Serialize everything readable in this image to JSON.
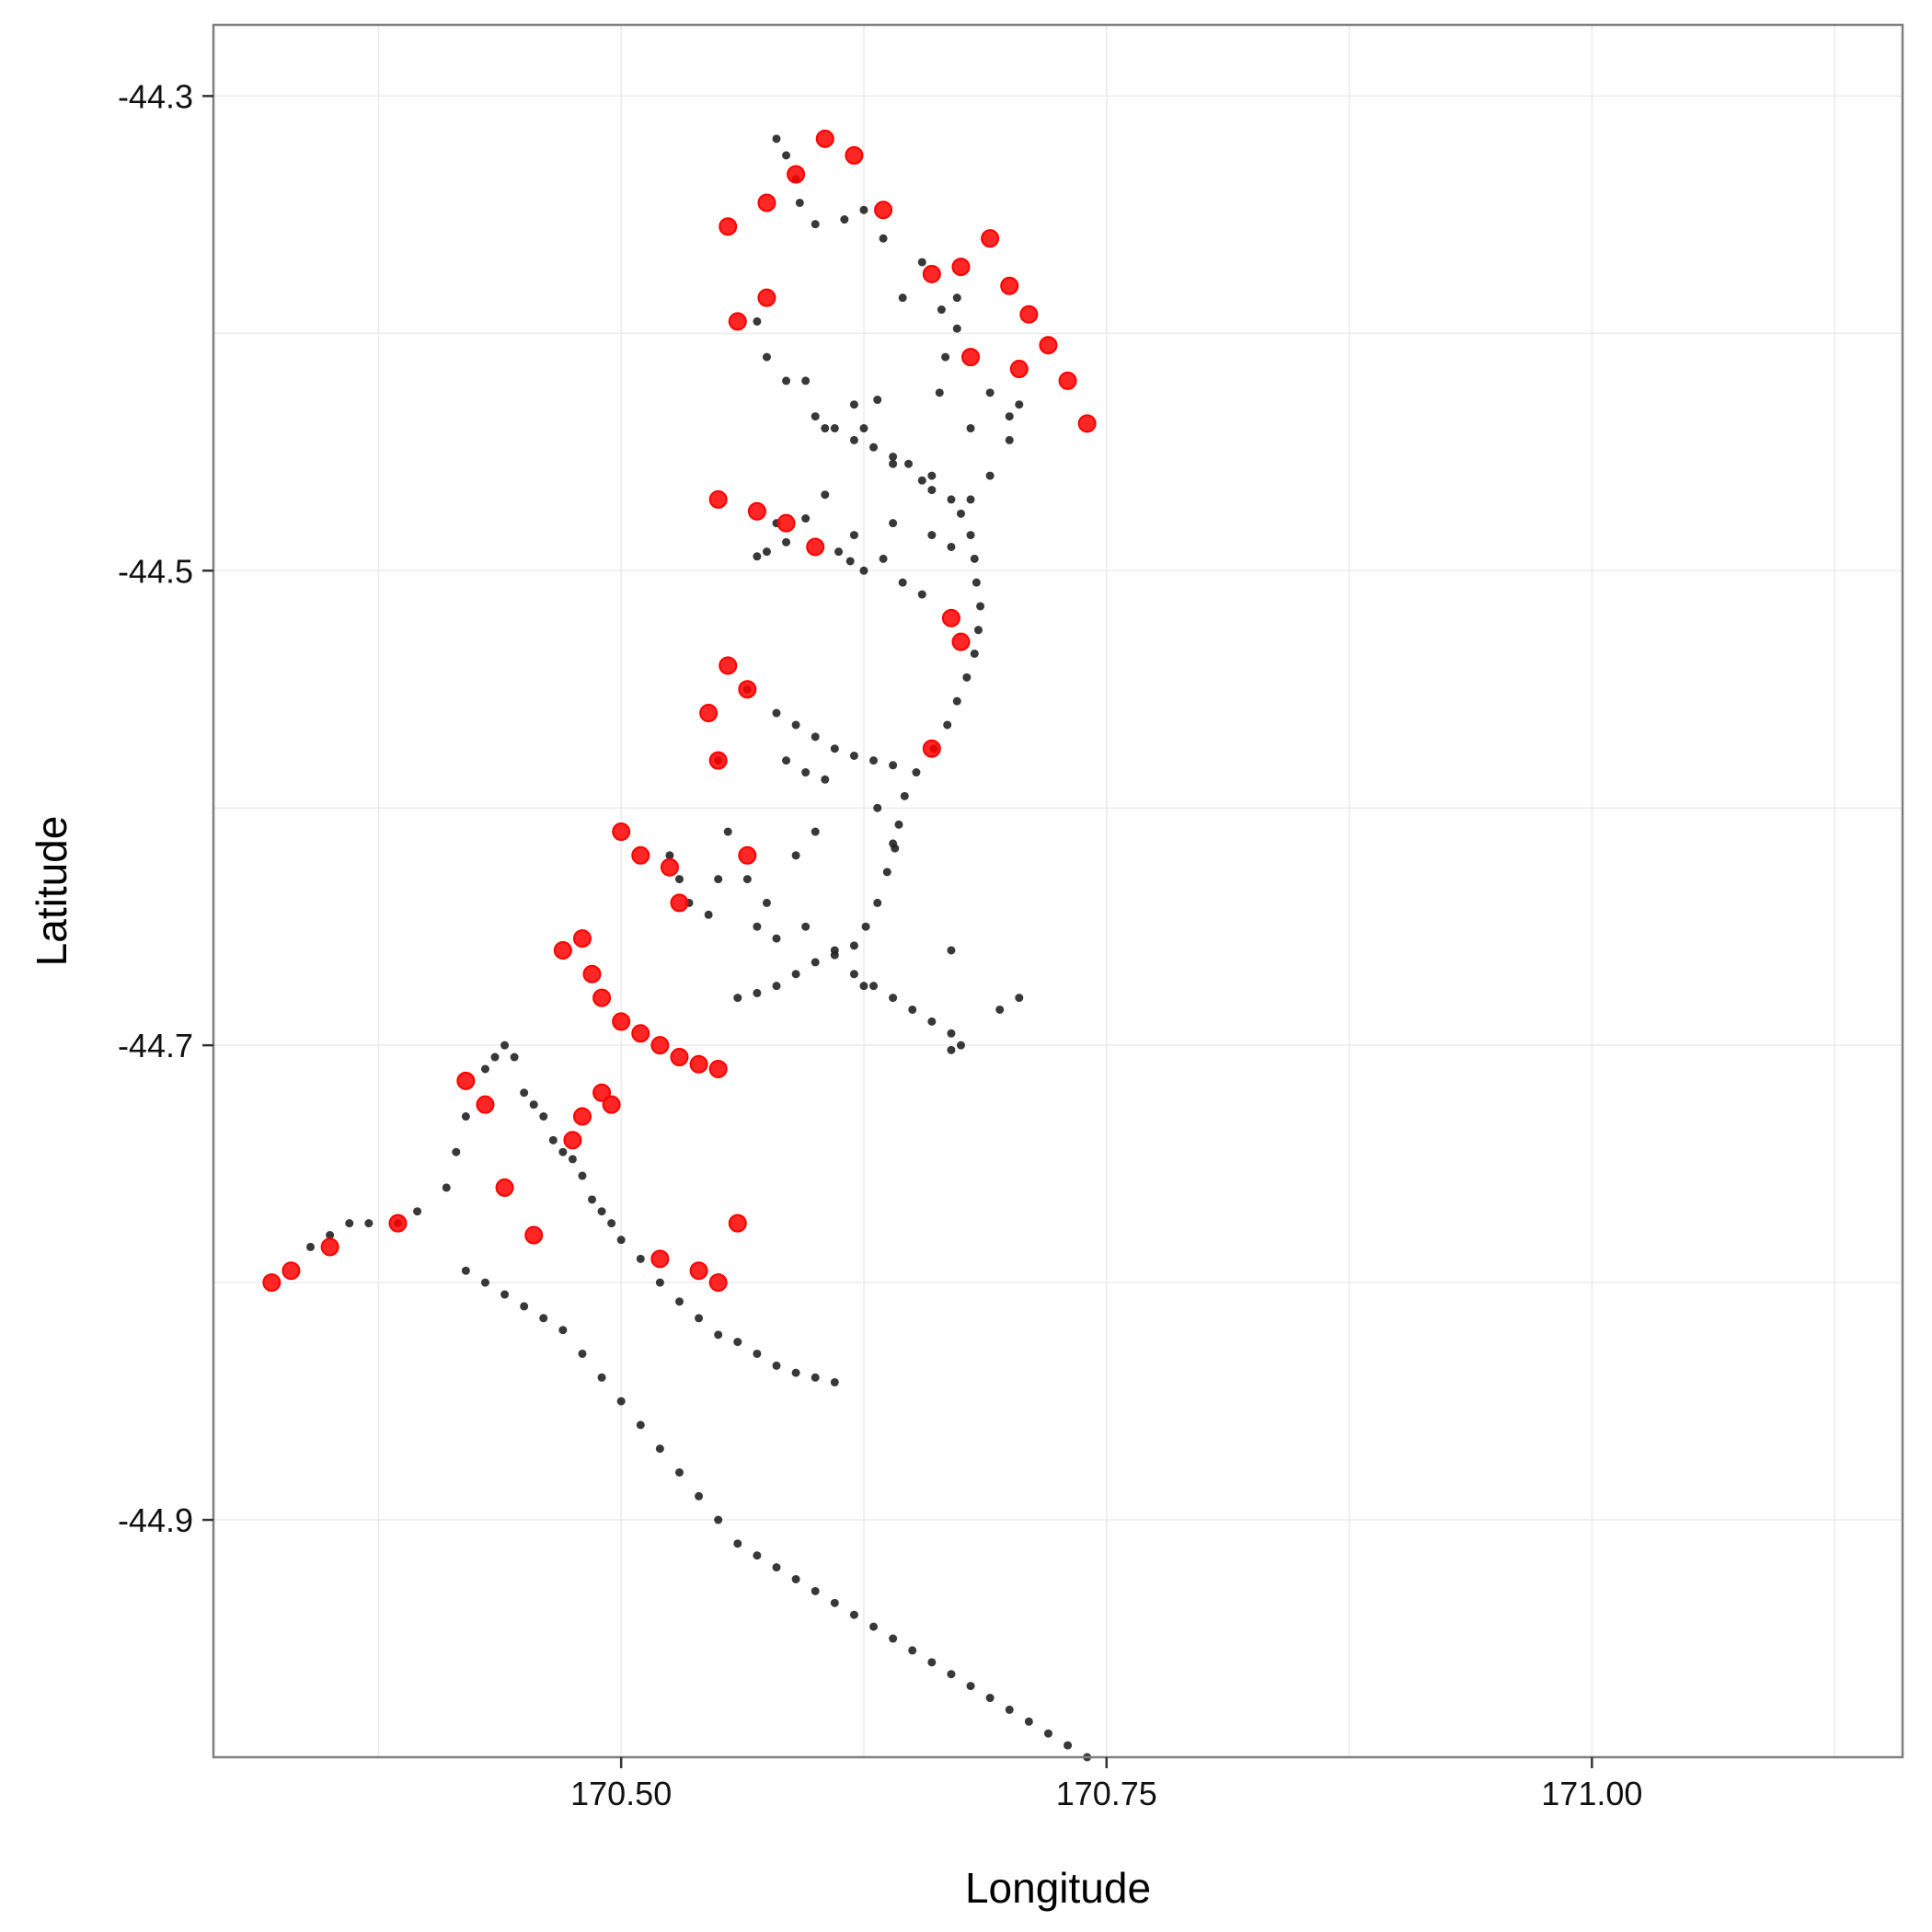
{
  "chart_data": {
    "type": "scatter",
    "title": "",
    "xlabel": "Longitude",
    "ylabel": "Latitude",
    "xlim": [
      170.29,
      171.16
    ],
    "ylim": [
      -45.0,
      -44.27
    ],
    "x_ticks": [
      "170.50",
      "170.75",
      "171.00"
    ],
    "x_tick_values": [
      170.5,
      170.75,
      171.0
    ],
    "y_ticks": [
      "-44.3",
      "-44.5",
      "-44.7",
      "-44.9"
    ],
    "y_tick_values": [
      -44.3,
      -44.5,
      -44.7,
      -44.9
    ],
    "grid": true,
    "legend": "none",
    "colors": {
      "panel_border": "#7f7f7f",
      "grid": "#ebebeb",
      "points_black": "#222222",
      "points_red": "#ff0000"
    },
    "series": [
      {
        "color": "#222222",
        "marker": "small-dot",
        "points": [
          [
            170.58,
            -44.318
          ],
          [
            170.585,
            -44.325
          ],
          [
            170.59,
            -44.335
          ],
          [
            170.592,
            -44.345
          ],
          [
            170.6,
            -44.354
          ],
          [
            170.615,
            -44.352
          ],
          [
            170.625,
            -44.348
          ],
          [
            170.635,
            -44.36
          ],
          [
            170.645,
            -44.385
          ],
          [
            170.655,
            -44.37
          ],
          [
            170.665,
            -44.39
          ],
          [
            170.673,
            -44.385
          ],
          [
            170.667,
            -44.41
          ],
          [
            170.664,
            -44.425
          ],
          [
            170.673,
            -44.398
          ],
          [
            170.57,
            -44.395
          ],
          [
            170.575,
            -44.41
          ],
          [
            170.585,
            -44.42
          ],
          [
            170.595,
            -44.42
          ],
          [
            170.6,
            -44.435
          ],
          [
            170.605,
            -44.44
          ],
          [
            170.61,
            -44.44
          ],
          [
            170.62,
            -44.445
          ],
          [
            170.63,
            -44.448
          ],
          [
            170.64,
            -44.452
          ],
          [
            170.648,
            -44.455
          ],
          [
            170.655,
            -44.462
          ],
          [
            170.66,
            -44.466
          ],
          [
            170.67,
            -44.47
          ],
          [
            170.675,
            -44.476
          ],
          [
            170.68,
            -44.485
          ],
          [
            170.682,
            -44.495
          ],
          [
            170.683,
            -44.505
          ],
          [
            170.685,
            -44.515
          ],
          [
            170.684,
            -44.525
          ],
          [
            170.682,
            -44.535
          ],
          [
            170.678,
            -44.545
          ],
          [
            170.673,
            -44.555
          ],
          [
            170.668,
            -44.565
          ],
          [
            170.661,
            -44.575
          ],
          [
            170.652,
            -44.585
          ],
          [
            170.646,
            -44.595
          ],
          [
            170.643,
            -44.607
          ],
          [
            170.641,
            -44.617
          ],
          [
            170.637,
            -44.627
          ],
          [
            170.632,
            -44.64
          ],
          [
            170.626,
            -44.65
          ],
          [
            170.62,
            -44.658
          ],
          [
            170.61,
            -44.662
          ],
          [
            170.6,
            -44.665
          ],
          [
            170.59,
            -44.67
          ],
          [
            170.58,
            -44.675
          ],
          [
            170.57,
            -44.678
          ],
          [
            170.56,
            -44.68
          ],
          [
            170.625,
            -44.44
          ],
          [
            170.62,
            -44.43
          ],
          [
            170.632,
            -44.428
          ],
          [
            170.605,
            -44.468
          ],
          [
            170.595,
            -44.478
          ],
          [
            170.585,
            -44.488
          ],
          [
            170.575,
            -44.492
          ],
          [
            170.57,
            -44.494
          ],
          [
            170.58,
            -44.48
          ],
          [
            170.612,
            -44.492
          ],
          [
            170.618,
            -44.496
          ],
          [
            170.625,
            -44.5
          ],
          [
            170.635,
            -44.495
          ],
          [
            170.645,
            -44.505
          ],
          [
            170.655,
            -44.51
          ],
          [
            170.68,
            -44.47
          ],
          [
            170.69,
            -44.46
          ],
          [
            170.7,
            -44.445
          ],
          [
            170.705,
            -44.43
          ],
          [
            170.69,
            -44.425
          ],
          [
            170.68,
            -44.44
          ],
          [
            170.7,
            -44.435
          ],
          [
            170.66,
            -44.46
          ],
          [
            170.66,
            -44.485
          ],
          [
            170.64,
            -44.48
          ],
          [
            170.62,
            -44.485
          ],
          [
            170.67,
            -44.49
          ],
          [
            170.64,
            -44.455
          ],
          [
            170.565,
            -44.55
          ],
          [
            170.58,
            -44.56
          ],
          [
            170.59,
            -44.565
          ],
          [
            170.6,
            -44.57
          ],
          [
            170.61,
            -44.575
          ],
          [
            170.62,
            -44.578
          ],
          [
            170.63,
            -44.58
          ],
          [
            170.64,
            -44.582
          ],
          [
            170.585,
            -44.58
          ],
          [
            170.595,
            -44.585
          ],
          [
            170.605,
            -44.588
          ],
          [
            170.64,
            -44.615
          ],
          [
            170.632,
            -44.6
          ],
          [
            170.55,
            -44.58
          ],
          [
            170.555,
            -44.61
          ],
          [
            170.565,
            -44.63
          ],
          [
            170.575,
            -44.64
          ],
          [
            170.58,
            -44.655
          ],
          [
            170.57,
            -44.65
          ],
          [
            170.525,
            -44.62
          ],
          [
            170.53,
            -44.63
          ],
          [
            170.535,
            -44.64
          ],
          [
            170.545,
            -44.645
          ],
          [
            170.595,
            -44.65
          ],
          [
            170.61,
            -44.66
          ],
          [
            170.62,
            -44.67
          ],
          [
            170.63,
            -44.675
          ],
          [
            170.64,
            -44.68
          ],
          [
            170.65,
            -44.685
          ],
          [
            170.66,
            -44.69
          ],
          [
            170.67,
            -44.695
          ],
          [
            170.675,
            -44.7
          ],
          [
            170.67,
            -44.66
          ],
          [
            170.6,
            -44.61
          ],
          [
            170.59,
            -44.62
          ],
          [
            170.55,
            -44.63
          ],
          [
            170.625,
            -44.675
          ],
          [
            170.67,
            -44.702
          ],
          [
            170.695,
            -44.685
          ],
          [
            170.705,
            -44.68
          ],
          [
            170.44,
            -44.7
          ],
          [
            170.445,
            -44.705
          ],
          [
            170.45,
            -44.72
          ],
          [
            170.455,
            -44.725
          ],
          [
            170.46,
            -44.73
          ],
          [
            170.465,
            -44.74
          ],
          [
            170.47,
            -44.745
          ],
          [
            170.475,
            -44.748
          ],
          [
            170.48,
            -44.755
          ],
          [
            170.485,
            -44.765
          ],
          [
            170.49,
            -44.77
          ],
          [
            170.495,
            -44.775
          ],
          [
            170.5,
            -44.782
          ],
          [
            170.51,
            -44.79
          ],
          [
            170.52,
            -44.8
          ],
          [
            170.53,
            -44.808
          ],
          [
            170.54,
            -44.815
          ],
          [
            170.55,
            -44.822
          ],
          [
            170.56,
            -44.825
          ],
          [
            170.57,
            -44.83
          ],
          [
            170.58,
            -44.835
          ],
          [
            170.59,
            -44.838
          ],
          [
            170.6,
            -44.84
          ],
          [
            170.61,
            -44.842
          ],
          [
            170.435,
            -44.705
          ],
          [
            170.43,
            -44.71
          ],
          [
            170.42,
            -44.73
          ],
          [
            170.415,
            -44.745
          ],
          [
            170.41,
            -44.76
          ],
          [
            170.395,
            -44.77
          ],
          [
            170.385,
            -44.775
          ],
          [
            170.37,
            -44.775
          ],
          [
            170.36,
            -44.775
          ],
          [
            170.35,
            -44.78
          ],
          [
            170.34,
            -44.785
          ],
          [
            170.42,
            -44.795
          ],
          [
            170.43,
            -44.8
          ],
          [
            170.44,
            -44.805
          ],
          [
            170.45,
            -44.81
          ],
          [
            170.46,
            -44.815
          ],
          [
            170.47,
            -44.82
          ],
          [
            170.48,
            -44.83
          ],
          [
            170.49,
            -44.84
          ],
          [
            170.5,
            -44.85
          ],
          [
            170.51,
            -44.86
          ],
          [
            170.52,
            -44.87
          ],
          [
            170.53,
            -44.88
          ],
          [
            170.54,
            -44.89
          ],
          [
            170.55,
            -44.9
          ],
          [
            170.56,
            -44.91
          ],
          [
            170.57,
            -44.915
          ],
          [
            170.58,
            -44.92
          ],
          [
            170.59,
            -44.925
          ],
          [
            170.6,
            -44.93
          ],
          [
            170.61,
            -44.935
          ],
          [
            170.62,
            -44.94
          ],
          [
            170.63,
            -44.945
          ],
          [
            170.64,
            -44.95
          ],
          [
            170.65,
            -44.955
          ],
          [
            170.66,
            -44.96
          ],
          [
            170.67,
            -44.965
          ],
          [
            170.68,
            -44.97
          ],
          [
            170.69,
            -44.975
          ],
          [
            170.7,
            -44.98
          ],
          [
            170.71,
            -44.985
          ],
          [
            170.72,
            -44.99
          ],
          [
            170.73,
            -44.995
          ],
          [
            170.74,
            -45.0
          ]
        ]
      },
      {
        "color": "#ff0000",
        "marker": "large-dot",
        "points": [
          [
            170.555,
            -44.355
          ],
          [
            170.575,
            -44.345
          ],
          [
            170.59,
            -44.333
          ],
          [
            170.605,
            -44.318
          ],
          [
            170.62,
            -44.325
          ],
          [
            170.635,
            -44.348
          ],
          [
            170.66,
            -44.375
          ],
          [
            170.675,
            -44.372
          ],
          [
            170.69,
            -44.36
          ],
          [
            170.7,
            -44.38
          ],
          [
            170.71,
            -44.392
          ],
          [
            170.72,
            -44.405
          ],
          [
            170.73,
            -44.42
          ],
          [
            170.74,
            -44.438
          ],
          [
            170.705,
            -44.415
          ],
          [
            170.68,
            -44.41
          ],
          [
            170.56,
            -44.395
          ],
          [
            170.575,
            -44.385
          ],
          [
            170.55,
            -44.47
          ],
          [
            170.57,
            -44.475
          ],
          [
            170.585,
            -44.48
          ],
          [
            170.6,
            -44.49
          ],
          [
            170.555,
            -44.54
          ],
          [
            170.565,
            -44.55
          ],
          [
            170.545,
            -44.56
          ],
          [
            170.55,
            -44.58
          ],
          [
            170.67,
            -44.52
          ],
          [
            170.675,
            -44.53
          ],
          [
            170.66,
            -44.575
          ],
          [
            170.5,
            -44.61
          ],
          [
            170.51,
            -44.62
          ],
          [
            170.525,
            -44.625
          ],
          [
            170.53,
            -44.64
          ],
          [
            170.565,
            -44.62
          ],
          [
            170.48,
            -44.655
          ],
          [
            170.47,
            -44.66
          ],
          [
            170.485,
            -44.67
          ],
          [
            170.49,
            -44.68
          ],
          [
            170.5,
            -44.69
          ],
          [
            170.51,
            -44.695
          ],
          [
            170.52,
            -44.7
          ],
          [
            170.53,
            -44.705
          ],
          [
            170.54,
            -44.708
          ],
          [
            170.55,
            -44.71
          ],
          [
            170.49,
            -44.72
          ],
          [
            170.495,
            -44.725
          ],
          [
            170.48,
            -44.73
          ],
          [
            170.475,
            -44.74
          ],
          [
            170.42,
            -44.715
          ],
          [
            170.43,
            -44.725
          ],
          [
            170.44,
            -44.76
          ],
          [
            170.385,
            -44.775
          ],
          [
            170.35,
            -44.785
          ],
          [
            170.33,
            -44.795
          ],
          [
            170.32,
            -44.8
          ],
          [
            170.52,
            -44.79
          ],
          [
            170.54,
            -44.795
          ],
          [
            170.55,
            -44.8
          ],
          [
            170.56,
            -44.775
          ],
          [
            170.455,
            -44.78
          ]
        ]
      }
    ]
  }
}
